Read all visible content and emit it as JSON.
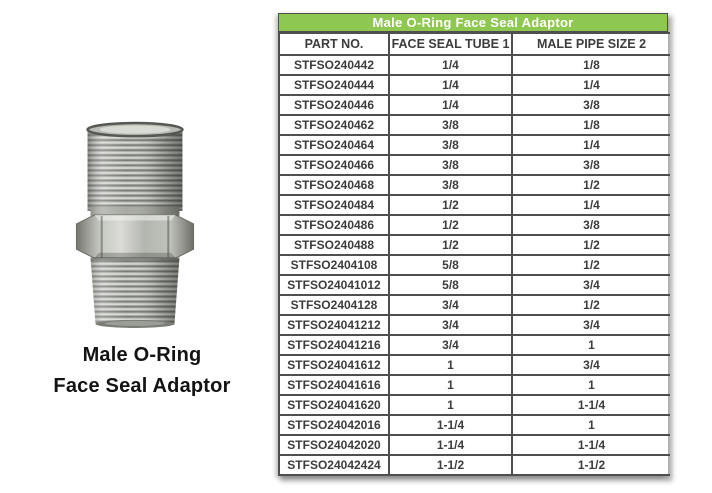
{
  "product": {
    "caption_line1": "Male O-Ring",
    "caption_line2": "Face Seal Adaptor"
  },
  "table": {
    "title": "Male O-Ring Face Seal Adaptor",
    "columns": [
      "PART NO.",
      "FACE SEAL TUBE 1",
      "MALE PIPE SIZE 2"
    ],
    "rows": [
      [
        "STFSO240442",
        "1/4",
        "1/8"
      ],
      [
        "STFSO240444",
        "1/4",
        "1/4"
      ],
      [
        "STFSO240446",
        "1/4",
        "3/8"
      ],
      [
        "STFSO240462",
        "3/8",
        "1/8"
      ],
      [
        "STFSO240464",
        "3/8",
        "1/4"
      ],
      [
        "STFSO240466",
        "3/8",
        "3/8"
      ],
      [
        "STFSO240468",
        "3/8",
        "1/2"
      ],
      [
        "STFSO240484",
        "1/2",
        "1/4"
      ],
      [
        "STFSO240486",
        "1/2",
        "3/8"
      ],
      [
        "STFSO240488",
        "1/2",
        "1/2"
      ],
      [
        "STFSO2404108",
        "5/8",
        "1/2"
      ],
      [
        "STFSO24041012",
        "5/8",
        "3/4"
      ],
      [
        "STFSO2404128",
        "3/4",
        "1/2"
      ],
      [
        "STFSO24041212",
        "3/4",
        "3/4"
      ],
      [
        "STFSO24041216",
        "3/4",
        "1"
      ],
      [
        "STFSO24041612",
        "1",
        "3/4"
      ],
      [
        "STFSO24041616",
        "1",
        "1"
      ],
      [
        "STFSO24041620",
        "1",
        "1-1/4"
      ],
      [
        "STFSO24042016",
        "1-1/4",
        "1"
      ],
      [
        "STFSO24042020",
        "1-1/4",
        "1-1/4"
      ],
      [
        "STFSO24042424",
        "1-1/2",
        "1-1/2"
      ]
    ]
  },
  "colors": {
    "header_green": "#8ec850",
    "table_border": "#4f4f4f",
    "cell_text": "#3c3c3c"
  }
}
